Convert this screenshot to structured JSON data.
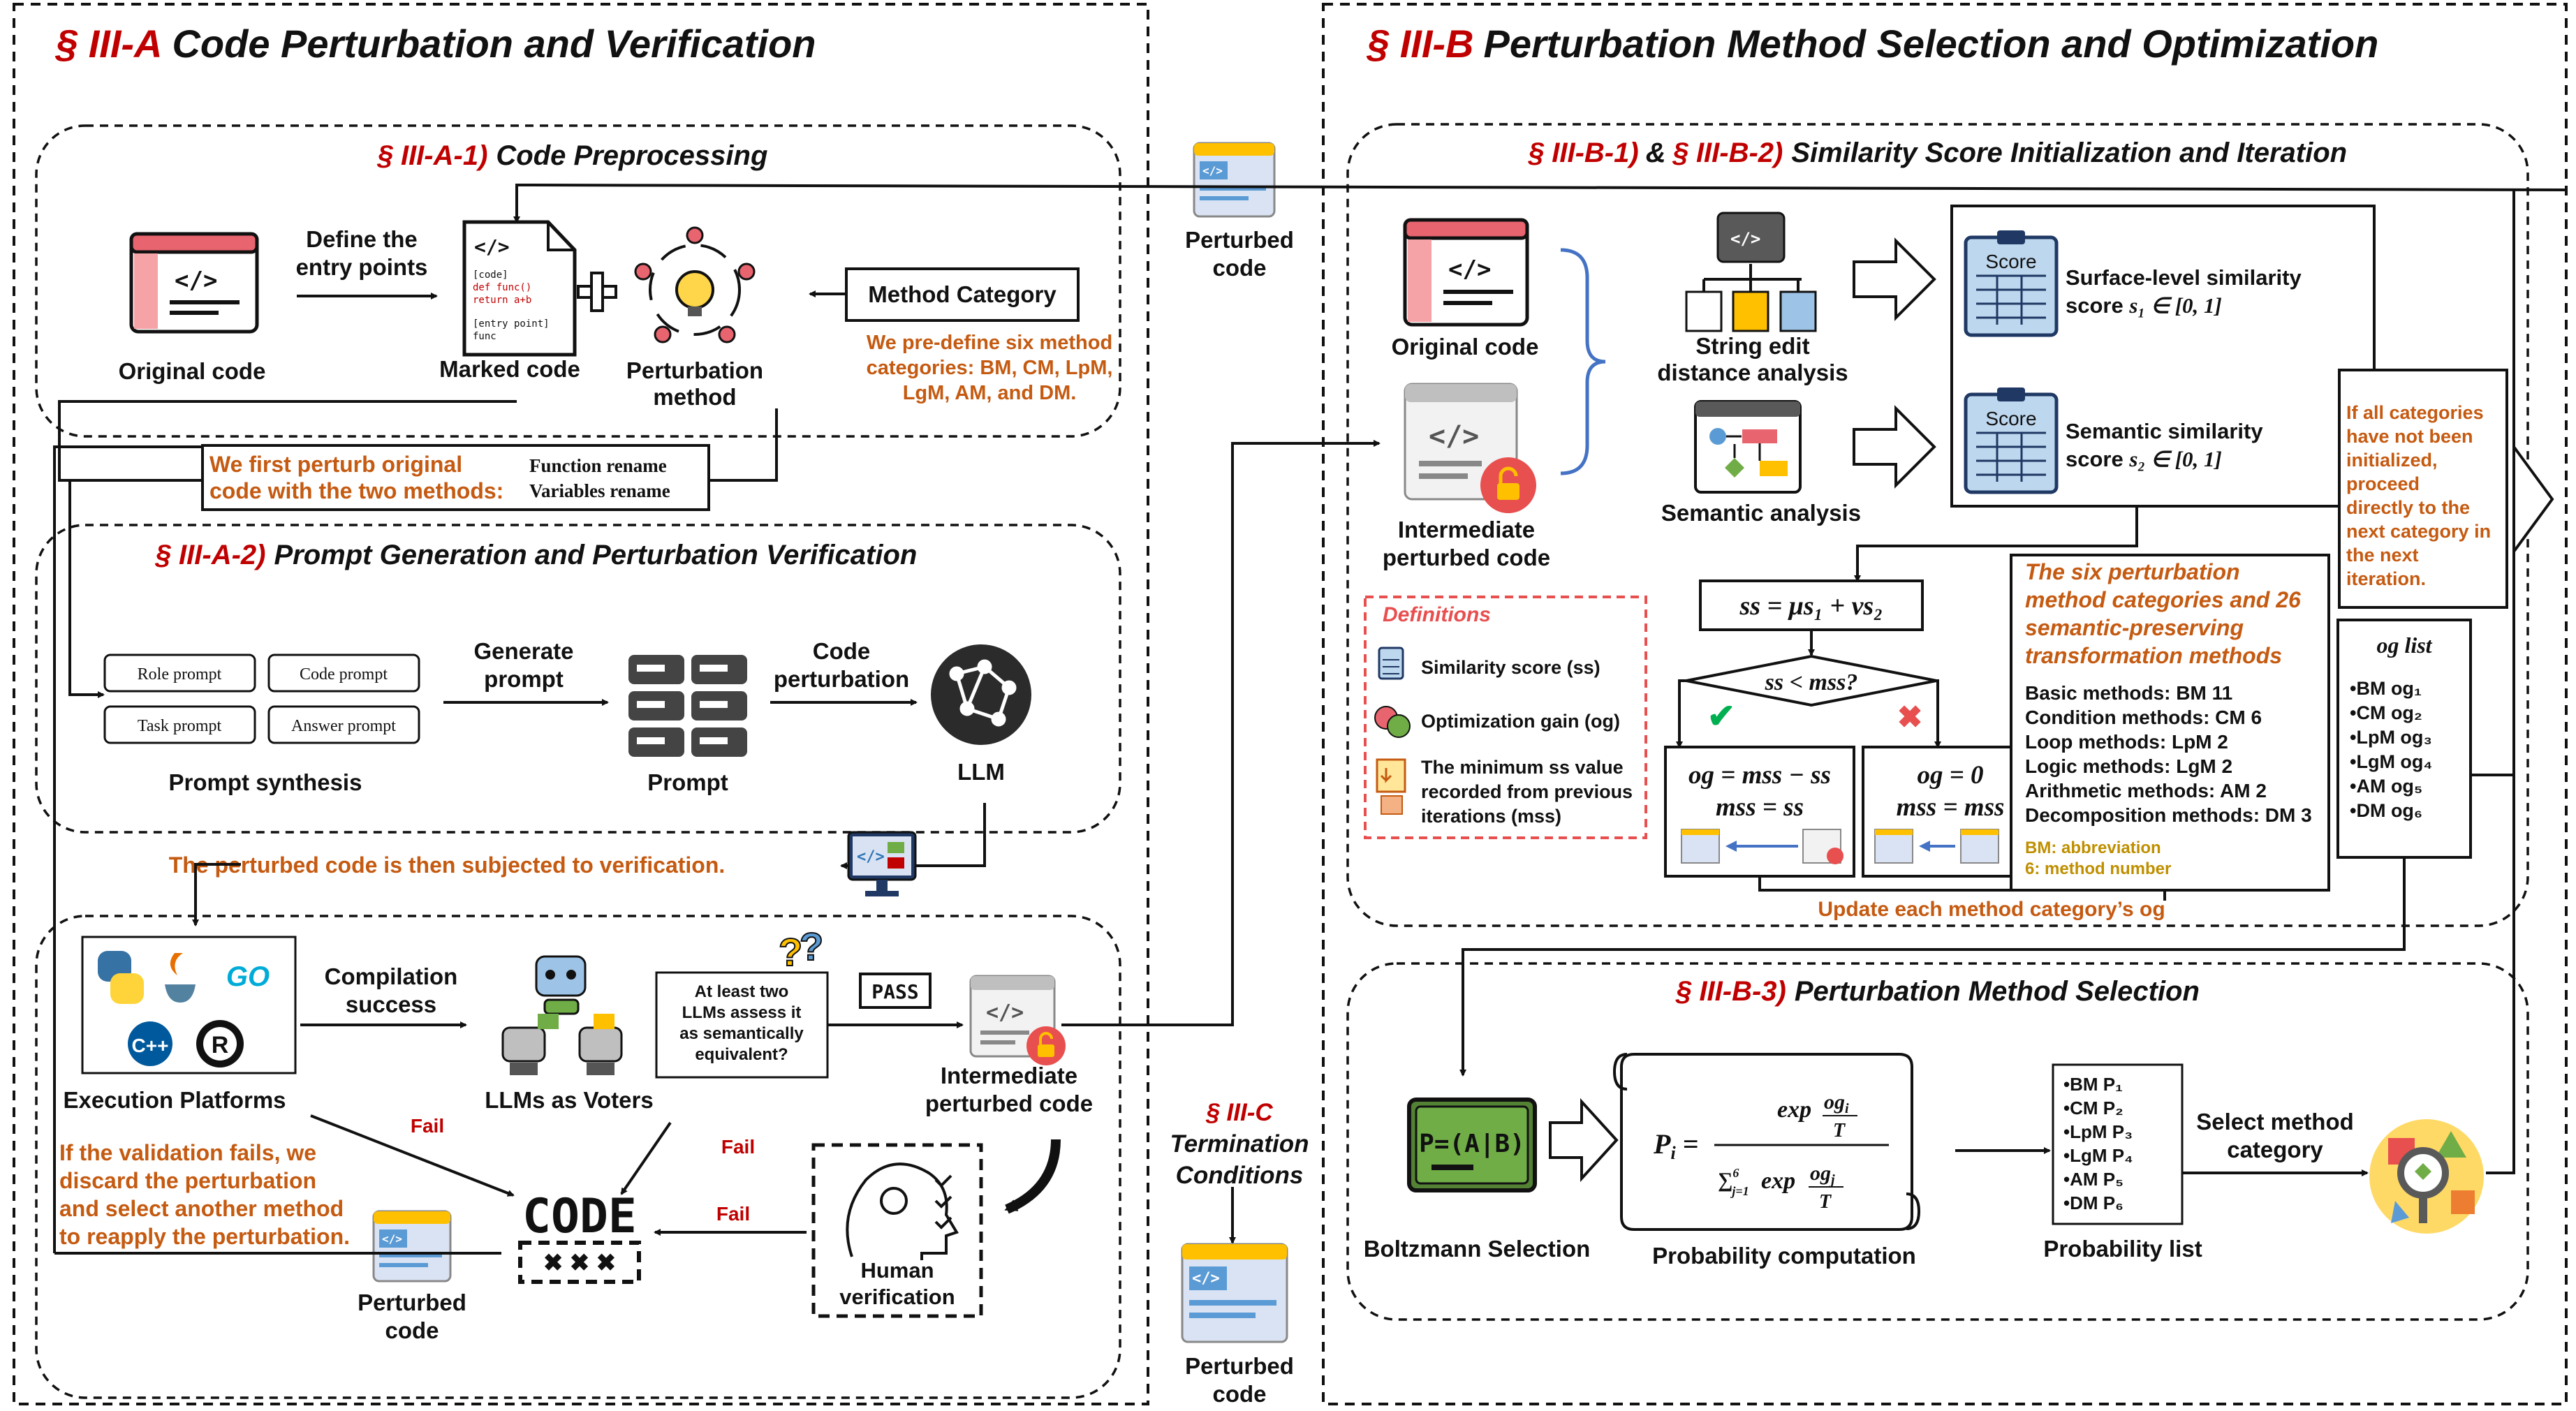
{
  "sectionA": {
    "title_prefix": "§ III-A",
    "title": "Code Perturbation and Verification",
    "a1_prefix": "§ III-A-1)",
    "a1_title": "Code Preprocessing",
    "original_code": "Original code",
    "define_entry_1": "Define the",
    "define_entry_2": "entry points",
    "marked_code": "Marked code",
    "marked_snippet": [
      "[code]",
      "def func()",
      " return a+b",
      "[entry point]",
      "func"
    ],
    "perturbation_method_1": "Perturbation",
    "perturbation_method_2": "method",
    "method_category": "Method  Category",
    "predefine_note": [
      "We pre-define six method",
      "categories: BM, CM, LpM,",
      "LgM, AM, and DM."
    ],
    "first_perturb": [
      "We first perturb original",
      "code with the two methods:"
    ],
    "function_rename": "Function rename",
    "variables_rename": "Variables rename",
    "a2_prefix": "§ III-A-2)",
    "a2_title": "Prompt Generation and Perturbation Verification",
    "prompts": [
      "Role prompt",
      "Code prompt",
      "Task prompt",
      "Answer prompt"
    ],
    "prompt_synthesis": "Prompt  synthesis",
    "generate_prompt": [
      "Generate",
      "prompt"
    ],
    "prompt": "Prompt",
    "code_perturbation": [
      "Code",
      "perturbation"
    ],
    "llm": "LLM",
    "verification_note": "The perturbed code is then subjected to verification.",
    "execution_platforms": "Execution Platforms",
    "compilation_success": [
      "Compilation",
      "success"
    ],
    "llms_voters": "LLMs as Voters",
    "llm_question": [
      "At least two",
      "LLMs assess it",
      "as semantically",
      "equivalent?"
    ],
    "pass": "PASS",
    "intermediate": [
      "Intermediate",
      "perturbed code"
    ],
    "fail": "Fail",
    "code_word": "CODE",
    "code_x": "✖ ✖ ✖",
    "discard_note": [
      "If the validation fails, we",
      "discard the perturbation",
      "and select another method",
      "to reapply the perturbation."
    ],
    "perturbed_code": [
      "Perturbed",
      "code"
    ],
    "human_verification": [
      "Human",
      "verification"
    ],
    "go_label": "GO",
    "cpp_label": "C++"
  },
  "middle": {
    "perturbed_code_top": [
      "Perturbed",
      "code"
    ],
    "termination_prefix": "§ III-C",
    "termination": [
      "Termination",
      "Conditions"
    ],
    "perturbed_code_bottom": [
      "Perturbed",
      "code"
    ]
  },
  "sectionB": {
    "title_prefix": "§ III-B",
    "title": "Perturbation Method Selection and Optimization",
    "b12_prefix1": "§ III-B-1)",
    "b12_amp": "&",
    "b12_prefix2": "§ III-B-2)",
    "b12_title": "Similarity Score Initialization and Iteration",
    "original_code": "Original code",
    "intermediate": [
      "Intermediate",
      "perturbed code"
    ],
    "string_edit": [
      "String edit",
      "distance analysis"
    ],
    "semantic_analysis": "Semantic analysis",
    "score_label": "Score",
    "surface_sim": [
      "Surface-level similarity",
      "score "
    ],
    "surface_sym": "s₁ ∈ [0, 1]",
    "semantic_sim": [
      "Semantic similarity",
      "score "
    ],
    "semantic_sym": "s₂ ∈ [0, 1]",
    "formula": "ss = μs₁ + νs₂",
    "decision": "ss < mss?",
    "check": "✔",
    "cross": "✖",
    "left_update": [
      "og = mss − ss",
      "mss = ss"
    ],
    "right_update": [
      "og = 0",
      "mss = mss"
    ],
    "update_note": "Update each method category’s og",
    "definitions_title": "Definitions",
    "definitions": [
      {
        "text": "Similarity score (ss)"
      },
      {
        "text": "Optimization gain (og)"
      },
      {
        "text": "The minimum ss value recorded from previous iterations (mss)"
      }
    ],
    "def_lines3": [
      "The minimum ss value",
      "recorded from previous",
      "iterations (mss)"
    ],
    "six_title": [
      "The six perturbation",
      "method categories and 26",
      "semantic-preserving",
      "transformation methods"
    ],
    "six_items": [
      "Basic methods: BM 11",
      "Condition methods: CM 6",
      "Loop methods: LpM 2",
      "Logic methods: LgM 2",
      "Arithmetic methods: AM 2",
      "Decomposition  methods: DM 3"
    ],
    "six_note": [
      "BM: abbreviation",
      "6: method number"
    ],
    "all_categories_note": [
      "If all categories",
      "have not been",
      "initialized,",
      "proceed",
      "directly to the",
      "next category in",
      "the next",
      "iteration."
    ],
    "og_list_title": "og list",
    "og_list": [
      "•BM og₁",
      "•CM og₂",
      "•LpM og₃",
      "•LgM og₄",
      "•AM og₅",
      "•DM og₆"
    ],
    "b3_prefix": "§ III-B-3)",
    "b3_title": "Perturbation Method Selection",
    "boltzmann": "Boltzmann Selection",
    "pab": "P=(A|B)",
    "probability_computation": "Probability computation",
    "prob_list": [
      "•BM P₁",
      "•CM P₂",
      "•LpM P₃",
      "•LgM P₄",
      "•AM P₅",
      "•DM P₆"
    ],
    "probability_list": "Probability list",
    "select_method": [
      "Select method",
      "category"
    ]
  }
}
